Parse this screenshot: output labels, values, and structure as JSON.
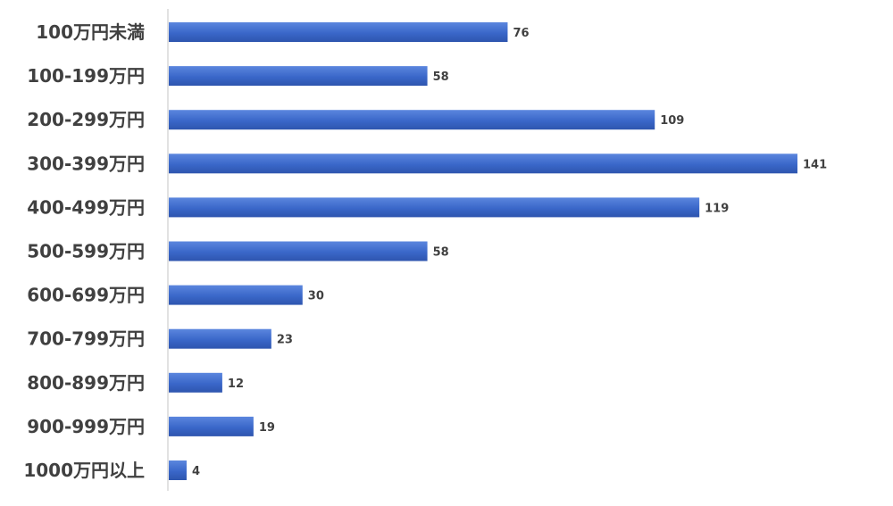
{
  "chart_data": {
    "type": "bar",
    "orientation": "horizontal",
    "categories": [
      "100万円未満",
      "100-199万円",
      "200-299万円",
      "300-399万円",
      "400-499万円",
      "500-599万円",
      "600-699万円",
      "700-799万円",
      "800-899万円",
      "900-999万円",
      "1000万円以上"
    ],
    "values": [
      76,
      58,
      109,
      141,
      119,
      58,
      30,
      23,
      12,
      19,
      4
    ],
    "data_labels": [
      "76",
      "58",
      "109",
      "141",
      "119",
      "58",
      "30",
      "23",
      "12",
      "19",
      "4"
    ],
    "title": "",
    "xlabel": "",
    "ylabel": "",
    "xlim": [
      0,
      141
    ],
    "grid": false,
    "legend": "none",
    "bar_color": "#3A67C9"
  }
}
